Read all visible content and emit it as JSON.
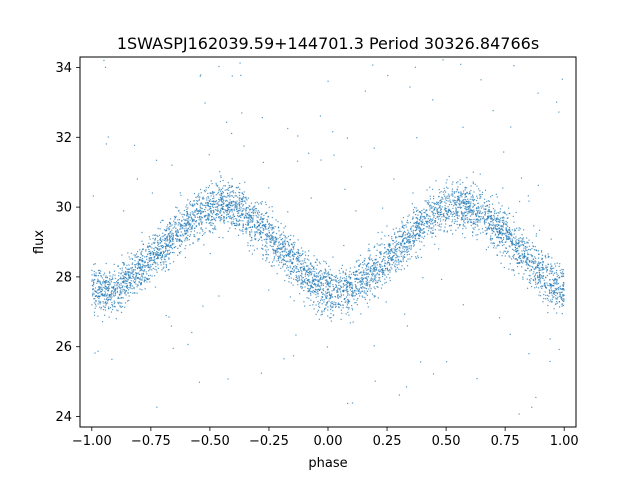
{
  "chart_data": {
    "type": "scatter",
    "title": "1SWASPJ162039.59+144701.3 Period 30326.84766s",
    "xlabel": "phase",
    "ylabel": "flux",
    "xlim": [
      -1.05,
      1.05
    ],
    "ylim": [
      23.7,
      34.3
    ],
    "xticks": [
      -1.0,
      -0.75,
      -0.5,
      -0.25,
      0.0,
      0.25,
      0.5,
      0.75,
      1.0
    ],
    "xtick_labels": [
      "−1.00",
      "−0.75",
      "−0.50",
      "−0.25",
      "0.00",
      "0.25",
      "0.50",
      "0.75",
      "1.00"
    ],
    "yticks": [
      24,
      26,
      28,
      30,
      32,
      34
    ],
    "ytick_labels": [
      "24",
      "26",
      "28",
      "30",
      "32",
      "34"
    ],
    "grid": false,
    "marker_color": "#1f77b4",
    "series": [
      {
        "phase": [
          -1.0,
          -0.95,
          -0.9,
          -0.85,
          -0.8,
          -0.75,
          -0.7,
          -0.65,
          -0.6,
          -0.55,
          -0.5,
          -0.45,
          -0.4,
          -0.35,
          -0.3,
          -0.25,
          -0.2,
          -0.15,
          -0.1,
          -0.05,
          0.0,
          0.05,
          0.1,
          0.15,
          0.2,
          0.25,
          0.3,
          0.35,
          0.4,
          0.45,
          0.5,
          0.55,
          0.6,
          0.65,
          0.7,
          0.75,
          0.8,
          0.85,
          0.9,
          0.95,
          1.0
        ],
        "flux_median": [
          27.7,
          27.6,
          27.7,
          27.9,
          28.2,
          28.5,
          28.8,
          29.2,
          29.5,
          29.8,
          30.0,
          30.1,
          30.0,
          29.8,
          29.5,
          29.2,
          28.8,
          28.5,
          28.1,
          27.8,
          27.6,
          27.5,
          27.7,
          27.9,
          28.2,
          28.5,
          28.8,
          29.2,
          29.5,
          29.8,
          30.0,
          30.1,
          30.0,
          29.8,
          29.5,
          29.2,
          28.8,
          28.5,
          28.1,
          27.8,
          27.6
        ],
        "flux_spread": 0.6
      }
    ]
  }
}
